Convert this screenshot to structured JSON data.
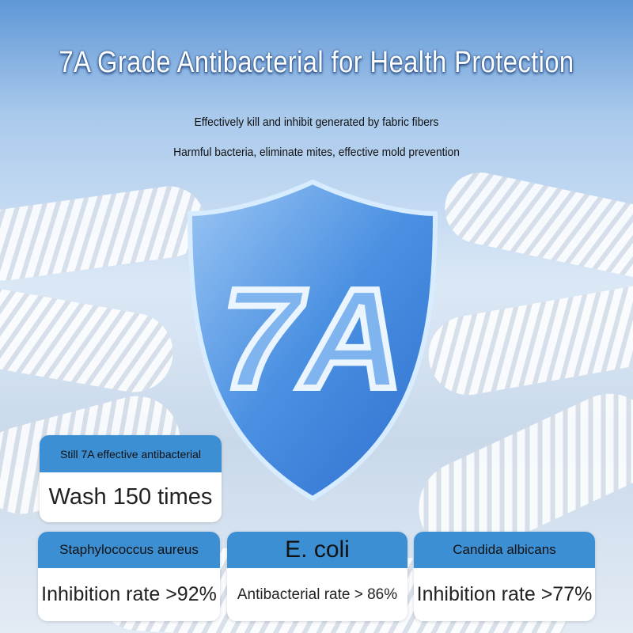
{
  "title": "7A Grade Antibacterial for Health Protection",
  "subtitle_lines": [
    "Effectively kill and inhibit generated by fabric fibers",
    "Harmful bacteria, eliminate mites, effective mold prevention"
  ],
  "shield": {
    "label": "7A",
    "color": "#4a90e2"
  },
  "wash_card": {
    "header": "Still 7A effective antibacterial",
    "body": "Wash 150 times"
  },
  "cards": [
    {
      "header": "Staphylococcus aureus",
      "body": "Inhibition rate >92%"
    },
    {
      "header": "E. coli",
      "body": "Antibacterial rate > 86%"
    },
    {
      "header": "Candida albicans",
      "body": "Inhibition rate >77%"
    }
  ],
  "colors": {
    "accent": "#3d8fd3",
    "title_text": "#ffffff"
  }
}
